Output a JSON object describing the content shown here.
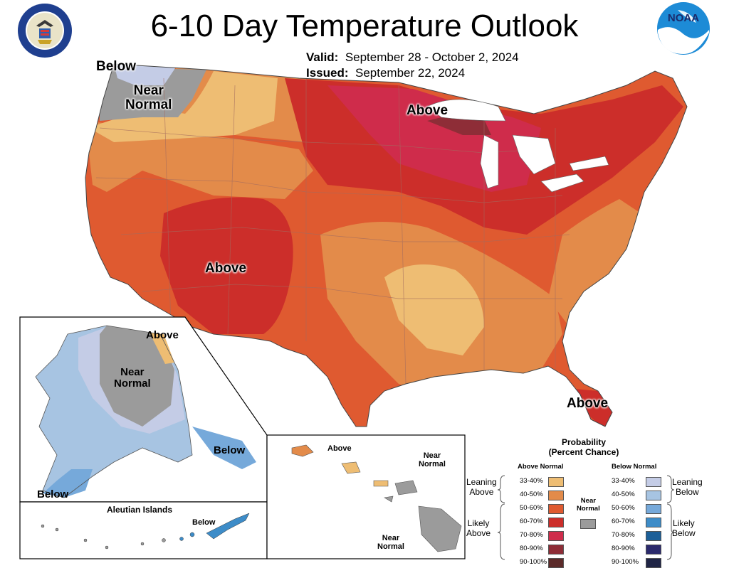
{
  "title": "6-10 Day Temperature Outlook",
  "valid": {
    "label": "Valid:",
    "value": "September 28 - October 2, 2024"
  },
  "issued": {
    "label": "Issued:",
    "value": "September 22, 2024"
  },
  "conus_labels": {
    "above_north": "Above",
    "above_southwest": "Above",
    "above_florida": "Above",
    "below_northwest": "Below",
    "near_normal_northwest": "Near\nNormal"
  },
  "alaska_labels": {
    "above": "Above",
    "near_normal": "Near\nNormal",
    "below_southeast": "Below",
    "below_southwest": "Below"
  },
  "aleutian": {
    "title": "Aleutian Islands",
    "below": "Below"
  },
  "hawaii_labels": {
    "above": "Above",
    "near_normal_north": "Near\nNormal",
    "near_normal_south": "Near\nNormal"
  },
  "legend": {
    "title": "Probability\n(Percent Chance)",
    "above_header": "Above Normal",
    "below_header": "Below Normal",
    "near_normal": "Near\nNormal",
    "leaning_above": "Leaning\nAbove",
    "likely_above": "Likely\nAbove",
    "leaning_below": "Leaning\nBelow",
    "likely_below": "Likely\nBelow",
    "above_categories": [
      {
        "range": "33-40%",
        "color": "#eebd73"
      },
      {
        "range": "40-50%",
        "color": "#e38b4a"
      },
      {
        "range": "50-60%",
        "color": "#df5a30"
      },
      {
        "range": "60-70%",
        "color": "#cc2e2a"
      },
      {
        "range": "70-80%",
        "color": "#cf2c4b"
      },
      {
        "range": "80-90%",
        "color": "#8e2d37"
      },
      {
        "range": "90-100%",
        "color": "#5c2b2a"
      }
    ],
    "below_categories": [
      {
        "range": "33-40%",
        "color": "#c4cce6"
      },
      {
        "range": "40-50%",
        "color": "#a7c4e2"
      },
      {
        "range": "50-60%",
        "color": "#76a9da"
      },
      {
        "range": "60-70%",
        "color": "#3d8cc8"
      },
      {
        "range": "70-80%",
        "color": "#1c5f98"
      },
      {
        "range": "80-90%",
        "color": "#2b2a6c"
      },
      {
        "range": "90-100%",
        "color": "#1f2445"
      }
    ],
    "near_normal_color": "#9b9b9b"
  }
}
